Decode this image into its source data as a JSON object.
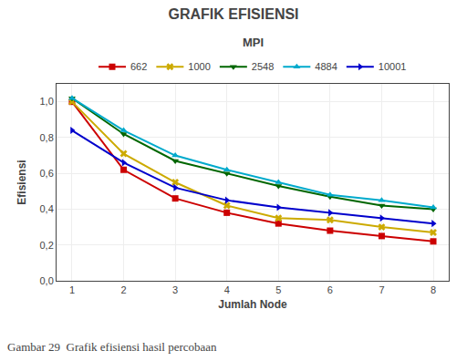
{
  "chart_data": {
    "type": "line",
    "title": "GRAFIK EFISIENSI",
    "subtitle": "MPI",
    "xlabel": "Jumlah Node",
    "ylabel": "Efisiensi",
    "caption": "Gambar 29  Grafik efisiensi hasil percobaan",
    "x": [
      1,
      2,
      3,
      4,
      5,
      6,
      7,
      8
    ],
    "series": [
      {
        "name": "662",
        "color": "#cc0000",
        "marker": "square",
        "values": [
          1.0,
          0.62,
          0.46,
          0.38,
          0.32,
          0.28,
          0.25,
          0.22
        ]
      },
      {
        "name": "1000",
        "color": "#ccaa00",
        "marker": "x",
        "values": [
          1.0,
          0.71,
          0.55,
          0.42,
          0.35,
          0.34,
          0.3,
          0.27
        ]
      },
      {
        "name": "2548",
        "color": "#006600",
        "marker": "triangle-down",
        "values": [
          1.02,
          0.82,
          0.67,
          0.6,
          0.53,
          0.47,
          0.42,
          0.4
        ]
      },
      {
        "name": "4884",
        "color": "#00aacc",
        "marker": "triangle-up",
        "values": [
          1.02,
          0.84,
          0.7,
          0.62,
          0.55,
          0.48,
          0.45,
          0.41
        ]
      },
      {
        "name": "10001",
        "color": "#0000cc",
        "marker": "triangle-right",
        "values": [
          0.84,
          0.66,
          0.52,
          0.45,
          0.41,
          0.38,
          0.35,
          0.32
        ]
      }
    ],
    "xlim": [
      0.7,
      8.3
    ],
    "xticks": [
      1,
      2,
      3,
      4,
      5,
      6,
      7,
      8
    ],
    "ylim": [
      0.0,
      1.1
    ],
    "yticks": [
      {
        "value": 0.0,
        "label": "0,0"
      },
      {
        "value": 0.2,
        "label": "0,2"
      },
      {
        "value": 0.4,
        "label": "0,4"
      },
      {
        "value": 0.6,
        "label": "0,6"
      },
      {
        "value": 0.8,
        "label": "0,8"
      },
      {
        "value": 1.0,
        "label": "1,0"
      }
    ],
    "grid": true,
    "legend": "top"
  }
}
